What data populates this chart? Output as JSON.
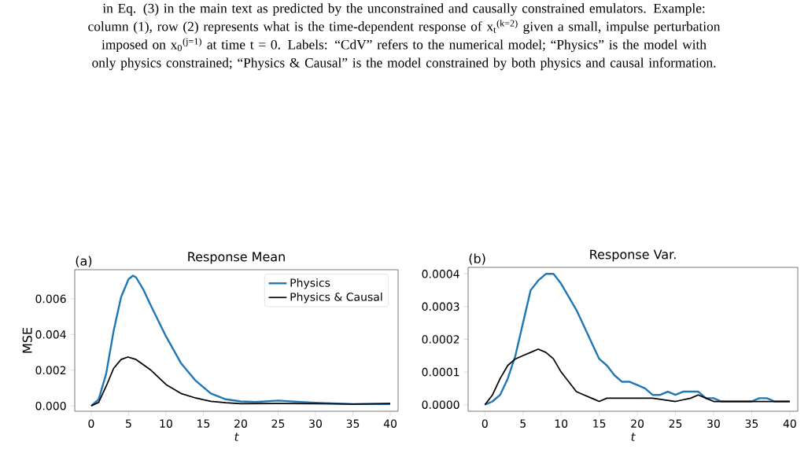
{
  "chart_data": [
    {
      "type": "line",
      "title": "Response Mean",
      "xlabel": "t",
      "ylabel": "MSE",
      "annotations": [
        "(a)",
        "in Eq. (3) in the main text as predicted by the unconstrained and causally constrained emulators. Example: column (1), row (2) represents what is the time-dependent response of x$_{t}$$^{(k=2)}$ given a small, impulse perturbation imposed on x$_{0}$$^{(j=1)}$ at time t = 0. Labels: “CdV” refers to the numerical model; “Physics” is the model with only physics constrained; “Physics & Causal” is the model constrained by both physics and causal information."
      ],
      "xlim": [
        -2.2,
        41.05
      ],
      "ylim": [
        -0.0003,
        0.00763
      ],
      "xticks": [
        0,
        5,
        10,
        15,
        20,
        25,
        30,
        35,
        40
      ],
      "yticks": [
        {
          "value": 0,
          "label": "0.000"
        },
        {
          "value": 0.002,
          "label": "0.002"
        },
        {
          "value": 0.004,
          "label": "0.004"
        },
        {
          "value": 0.006,
          "label": "0.006"
        }
      ],
      "legend": "top right",
      "series": [
        {
          "name": "Physics",
          "color": "#1f77b4",
          "x": [
            0,
            1,
            2,
            3,
            4,
            5,
            5.6,
            6,
            7,
            8,
            10,
            12,
            14,
            16,
            18,
            20,
            22,
            25,
            28,
            30,
            35,
            40
          ],
          "values": [
            0,
            0.00037,
            0.0018,
            0.0042,
            0.0061,
            0.0071,
            0.0073,
            0.0072,
            0.0065,
            0.0056,
            0.0039,
            0.0024,
            0.0014,
            0.0007,
            0.00037,
            0.00025,
            0.00022,
            0.0003,
            0.00022,
            0.00018,
            0.0001,
            0.0001
          ]
        },
        {
          "name": "Physics & Causal",
          "color": "#000000",
          "x": [
            0,
            1,
            2,
            3,
            4,
            4.9,
            6,
            7,
            8,
            10,
            12,
            14,
            16,
            18,
            20,
            25,
            30,
            35,
            40
          ],
          "values": [
            0,
            0.0002,
            0.0011,
            0.0021,
            0.0026,
            0.00274,
            0.0026,
            0.0023,
            0.002,
            0.0012,
            0.0007,
            0.00044,
            0.00026,
            0.00018,
            0.00012,
            0.00013,
            0.00012,
            0.0001,
            0.00013
          ]
        }
      ]
    },
    {
      "type": "line",
      "title": "Response Var.",
      "xlabel": "t",
      "annotations": [
        "(b)"
      ],
      "xlim": [
        -2.2,
        41.05
      ],
      "ylim": [
        -2e-05,
        0.00042
      ],
      "xticks": [
        0,
        5,
        10,
        15,
        20,
        25,
        30,
        35,
        40
      ],
      "yticks": [
        {
          "value": 0,
          "label": "0.0000"
        },
        {
          "value": 0.0001,
          "label": "0.0001"
        },
        {
          "value": 0.0002,
          "label": "0.0002"
        },
        {
          "value": 0.0003,
          "label": "0.0003"
        },
        {
          "value": 0.0004,
          "label": "0.0004"
        }
      ],
      "series": [
        {
          "color": "#1f77b4",
          "x": [
            0,
            1,
            2,
            3,
            4,
            5,
            6,
            7,
            8,
            8.7,
            9,
            10,
            11,
            12,
            13,
            14,
            15,
            16,
            17,
            18,
            19,
            20,
            21,
            22,
            23,
            24,
            25,
            26,
            27,
            28,
            29,
            30,
            31,
            32,
            33,
            34,
            35,
            36,
            37,
            38,
            39,
            40
          ],
          "values": [
            0,
            1e-05,
            3e-05,
            8e-05,
            0.00015,
            0.00025,
            0.00035,
            0.00038,
            0.0004,
            0.0004,
            0.0004,
            0.00037,
            0.00033,
            0.00029,
            0.00024,
            0.00019,
            0.00014,
            0.00012,
            9e-05,
            7e-05,
            7e-05,
            6e-05,
            5e-05,
            3e-05,
            3e-05,
            4e-05,
            3e-05,
            4e-05,
            4e-05,
            4e-05,
            2e-05,
            2e-05,
            1e-05,
            1e-05,
            1e-05,
            1e-05,
            1e-05,
            2e-05,
            2e-05,
            1e-05,
            1e-05,
            1e-05
          ]
        },
        {
          "color": "#000000",
          "x": [
            0,
            1,
            2,
            3,
            4,
            5,
            6,
            7,
            8,
            9,
            10,
            11,
            12,
            13,
            14,
            15,
            16,
            18,
            20,
            22,
            25,
            27,
            28,
            29,
            30,
            32,
            35,
            36,
            37,
            40
          ],
          "values": [
            0,
            3e-05,
            8e-05,
            0.00012,
            0.00014,
            0.00015,
            0.00016,
            0.00017,
            0.00016,
            0.00014,
            0.0001,
            7e-05,
            4e-05,
            3e-05,
            2e-05,
            1e-05,
            2e-05,
            2e-05,
            2e-05,
            2e-05,
            1e-05,
            2e-05,
            3e-05,
            2e-05,
            1e-05,
            1e-05,
            1e-05,
            1e-05,
            1e-05,
            1e-05
          ]
        }
      ]
    }
  ]
}
